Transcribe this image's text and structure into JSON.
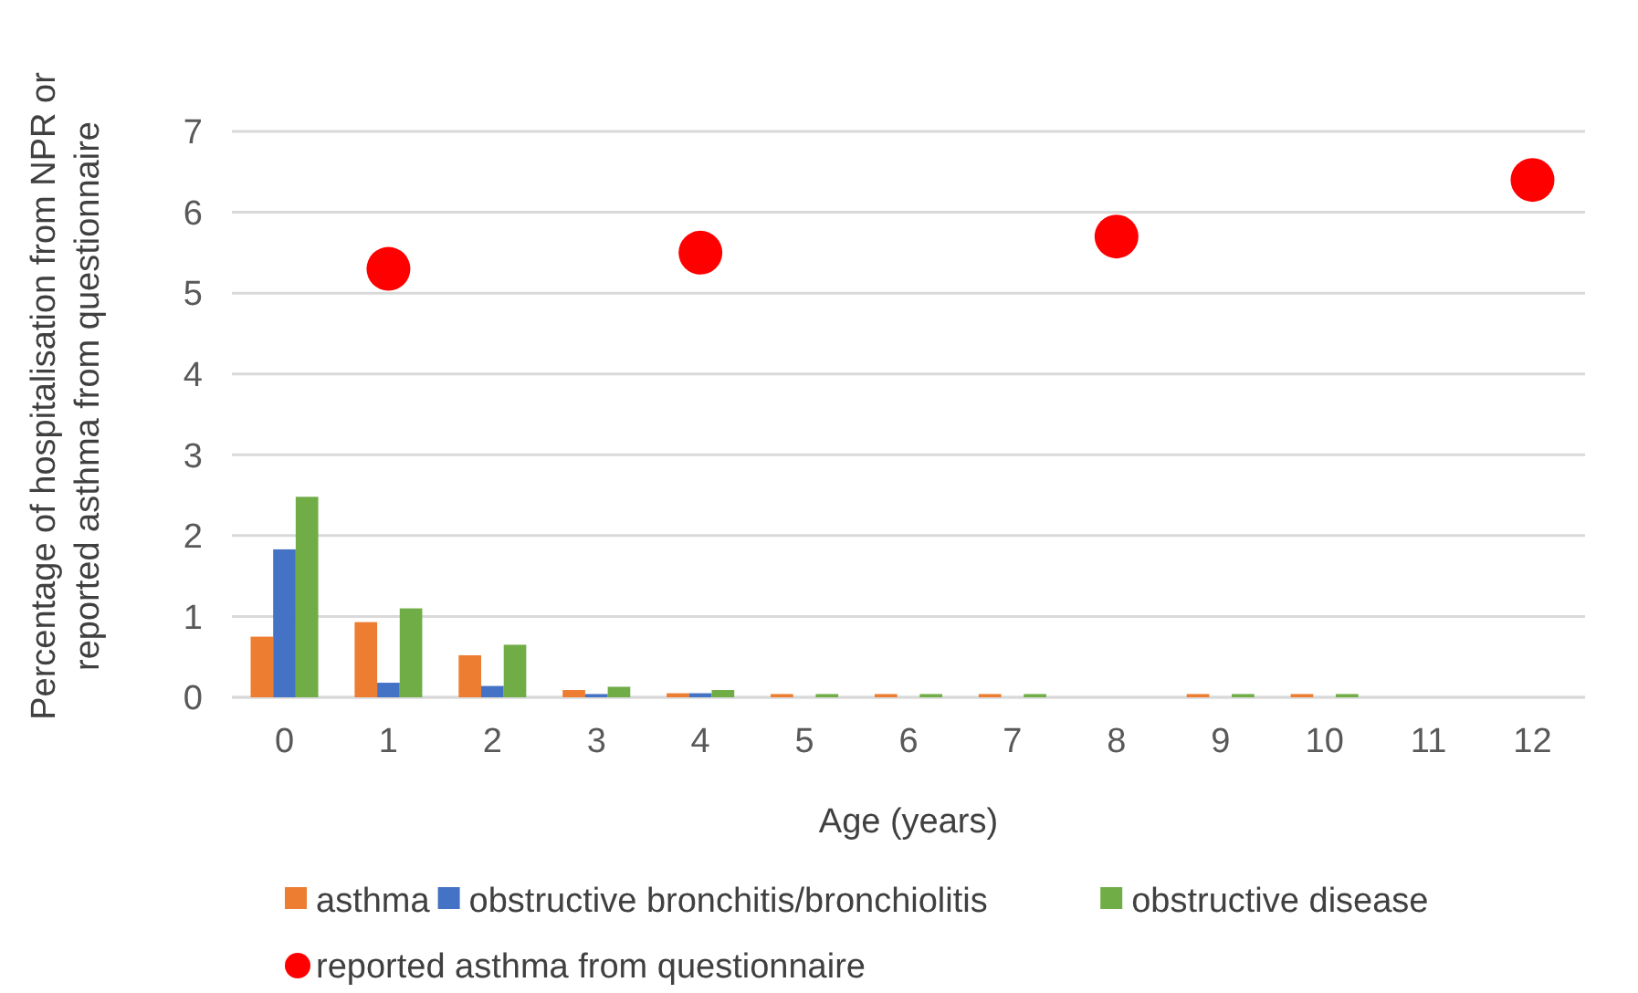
{
  "chart_data": {
    "type": "bar",
    "xlabel": "Age (years)",
    "ylabel": "Percentage of hospitalisation from NPR or reported asthma from questionnaire",
    "categories": [
      "0",
      "1",
      "2",
      "3",
      "4",
      "5",
      "6",
      "7",
      "8",
      "9",
      "10",
      "11",
      "12"
    ],
    "ylim": [
      0,
      7
    ],
    "yticks": [
      0,
      1,
      2,
      3,
      4,
      5,
      6,
      7
    ],
    "grid": "y",
    "legend": "bottom",
    "series": [
      {
        "name": "asthma",
        "color": "#ed7d31",
        "values": [
          0.75,
          0.93,
          0.52,
          0.09,
          0.05,
          0.04,
          0.04,
          0.04,
          0,
          0.04,
          0.04,
          0,
          0
        ]
      },
      {
        "name": "obstructive bronchitis/bronchiolitis",
        "color": "#4472c4",
        "values": [
          1.83,
          0.18,
          0.14,
          0.04,
          0.05,
          0,
          0,
          0,
          0,
          0,
          0,
          0,
          0
        ]
      },
      {
        "name": "obstructive disease",
        "color": "#70ad47",
        "values": [
          2.48,
          1.1,
          0.65,
          0.13,
          0.09,
          0.04,
          0.04,
          0.04,
          0,
          0.04,
          0.04,
          0,
          0
        ]
      },
      {
        "name": "reported asthma from questionnaire",
        "type": "scatter",
        "marker": "circle",
        "color": "#ff0000",
        "x": [
          "1",
          "4",
          "8",
          "12"
        ],
        "values": [
          5.3,
          5.5,
          5.7,
          6.4
        ]
      }
    ]
  }
}
